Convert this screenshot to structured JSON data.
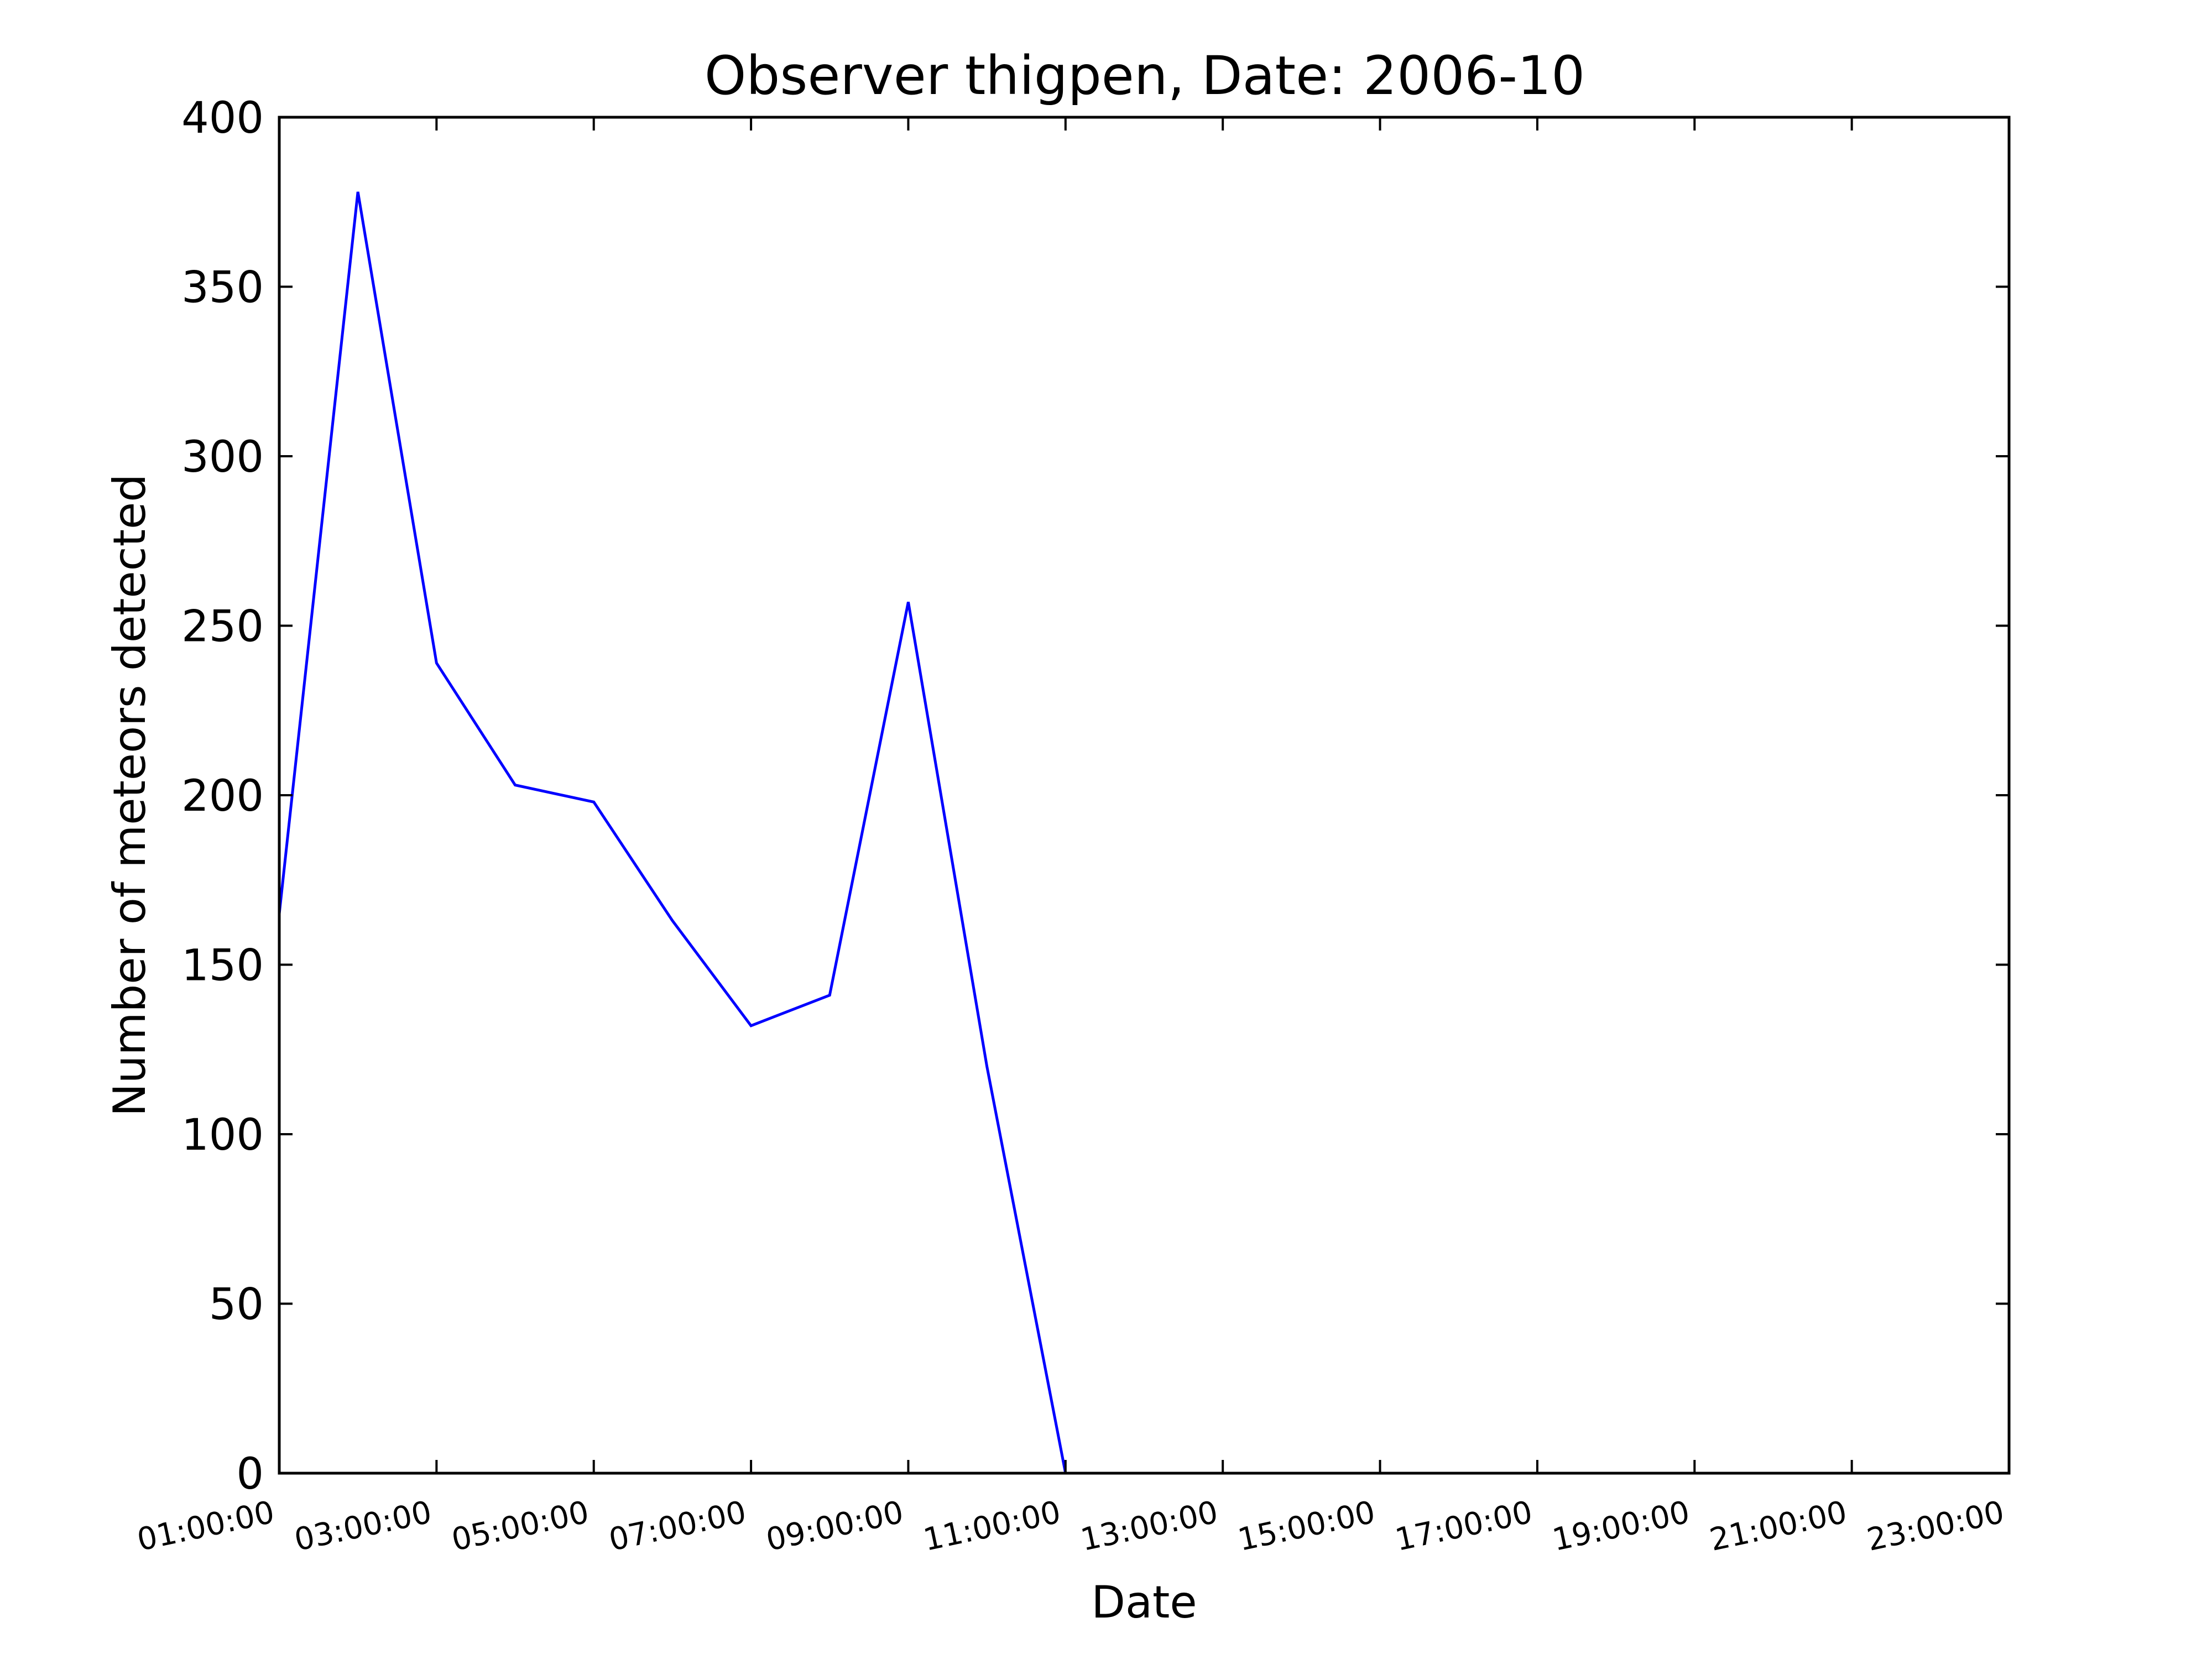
{
  "chart_data": {
    "type": "line",
    "title": "Observer thigpen, Date: 2006-10",
    "xlabel": "Date",
    "ylabel": "Number of meteors detected",
    "x": [
      "01:00:00",
      "02:00:00",
      "03:00:00",
      "04:00:00",
      "05:00:00",
      "06:00:00",
      "07:00:00",
      "08:00:00",
      "09:00:00",
      "10:00:00",
      "11:00:00"
    ],
    "series": [
      {
        "values": [
          165,
          378,
          239,
          203,
          198,
          163,
          132,
          141,
          257,
          120,
          0
        ]
      }
    ],
    "xlim": [
      "01:00:00",
      "23:00:00"
    ],
    "ylim": [
      0,
      400
    ],
    "x_ticks": [
      "01:00:00",
      "03:00:00",
      "05:00:00",
      "07:00:00",
      "09:00:00",
      "11:00:00",
      "13:00:00",
      "15:00:00",
      "17:00:00",
      "19:00:00",
      "21:00:00",
      "23:00:00"
    ],
    "y_ticks": [
      "0",
      "50",
      "100",
      "150",
      "200",
      "250",
      "300",
      "350",
      "400"
    ],
    "line_color": "#0000ff",
    "grid": false,
    "legend": "none"
  }
}
